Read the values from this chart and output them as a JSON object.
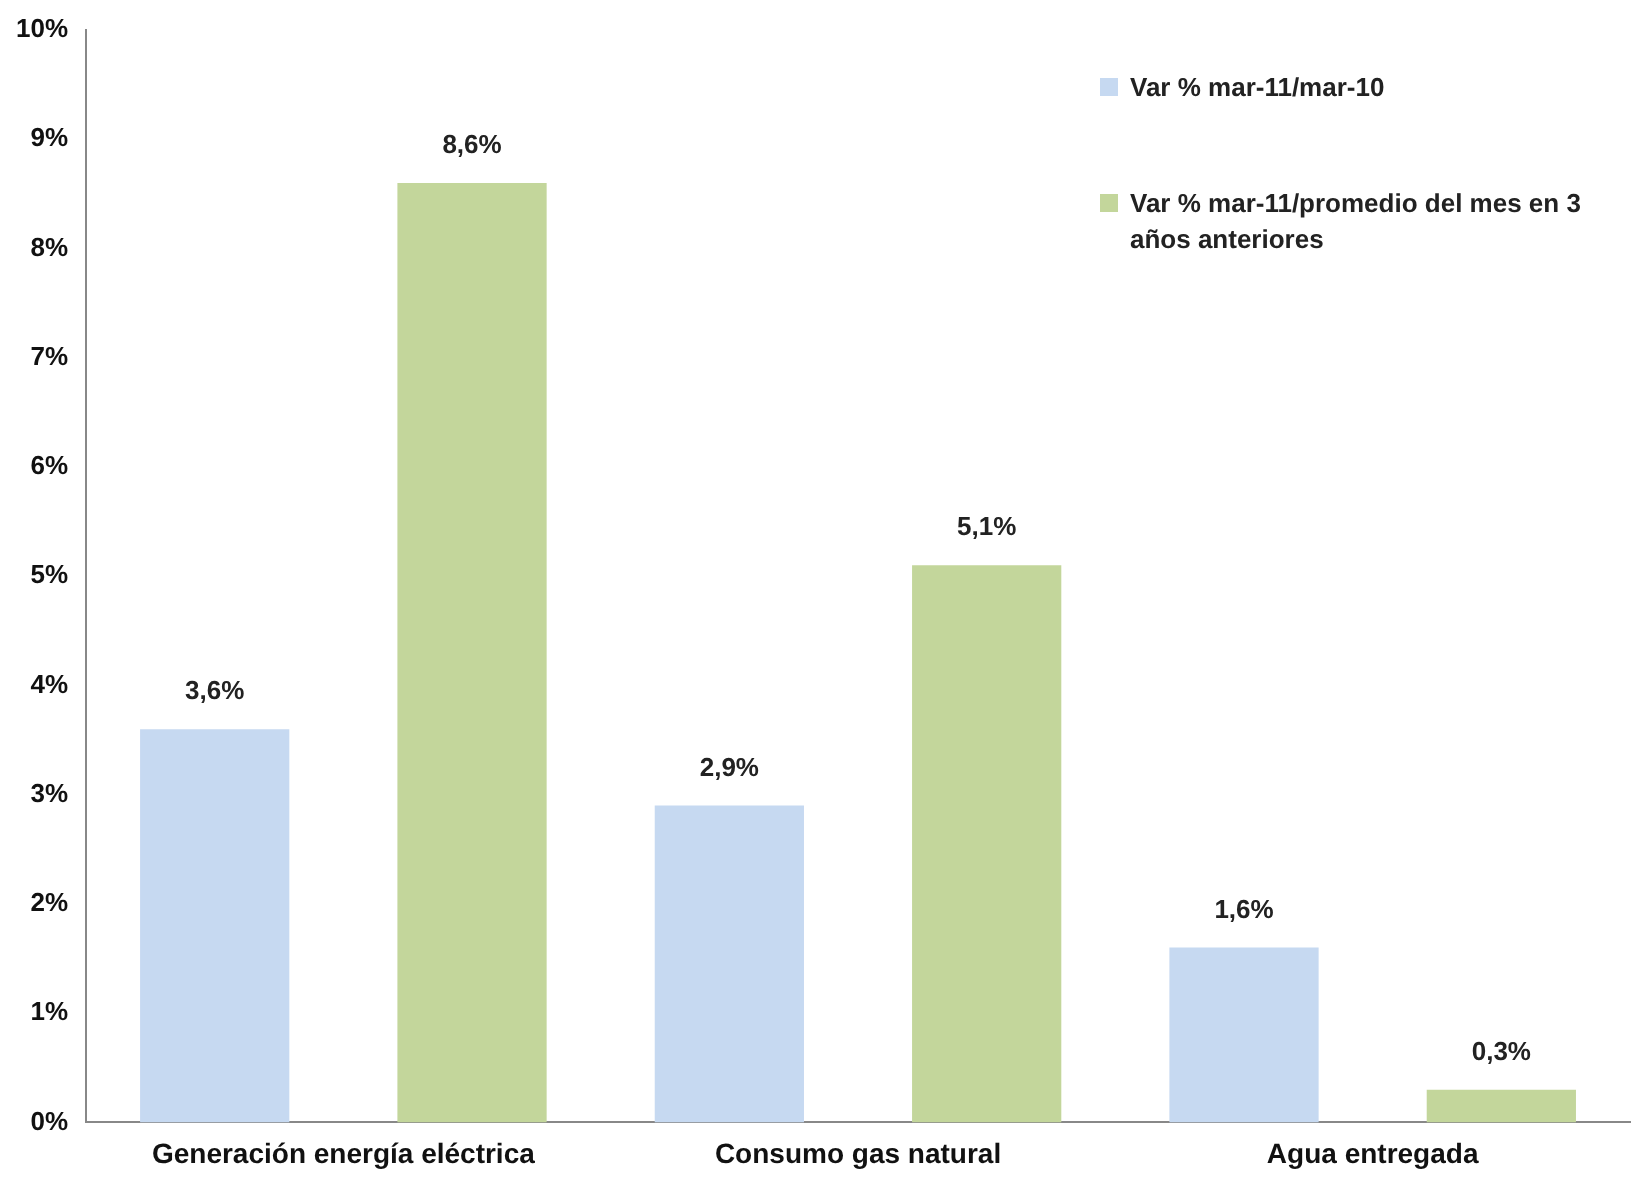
{
  "chart_data": {
    "type": "bar",
    "categories": [
      "Generación energía eléctrica",
      "Consumo gas natural",
      "Agua entregada"
    ],
    "series": [
      {
        "name": "Var % mar-11/mar-10",
        "color": "#c6d9f1",
        "values": [
          3.6,
          2.9,
          1.6
        ],
        "value_labels": [
          "3,6%",
          "2,9%",
          "1,6%"
        ]
      },
      {
        "name": "Var % mar-11/promedio del mes en 3 años anteriores",
        "color": "#c3d69b",
        "values": [
          8.6,
          5.1,
          0.3
        ],
        "value_labels": [
          "8,6%",
          "5,1%",
          "0,3%"
        ]
      }
    ],
    "ylim": [
      0,
      10
    ],
    "yticks": [
      {
        "value": 0,
        "label": "0%"
      },
      {
        "value": 1,
        "label": "1%"
      },
      {
        "value": 2,
        "label": "2%"
      },
      {
        "value": 3,
        "label": "3%"
      },
      {
        "value": 4,
        "label": "4%"
      },
      {
        "value": 5,
        "label": "5%"
      },
      {
        "value": 6,
        "label": "6%"
      },
      {
        "value": 7,
        "label": "7%"
      },
      {
        "value": 8,
        "label": "8%"
      },
      {
        "value": 9,
        "label": "9%"
      },
      {
        "value": 10,
        "label": "10%"
      }
    ],
    "grid": false,
    "legend": "top right"
  }
}
